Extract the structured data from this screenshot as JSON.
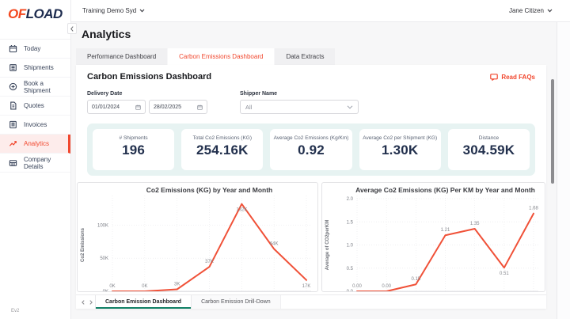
{
  "brand": {
    "logo_primary": "OF",
    "logo_secondary": "LOAD"
  },
  "topbar": {
    "org_selector": "Training Demo Syd",
    "user_menu": "Jane Citizen"
  },
  "sidebar": {
    "items": [
      {
        "label": "Today"
      },
      {
        "label": "Shipments"
      },
      {
        "label": "Book a Shipment"
      },
      {
        "label": "Quotes"
      },
      {
        "label": "Invoices"
      },
      {
        "label": "Analytics"
      },
      {
        "label": "Company Details"
      }
    ],
    "version": "Ev2"
  },
  "page": {
    "title": "Analytics"
  },
  "tabs": [
    {
      "label": "Performance Dashboard"
    },
    {
      "label": "Carbon Emissions Dashboard"
    },
    {
      "label": "Data Extracts"
    }
  ],
  "panel": {
    "title": "Carbon Emissions Dashboard",
    "read_faqs_label": "Read FAQs"
  },
  "filters": {
    "delivery_date_label": "Delivery Date",
    "date_from": "01/01/2024",
    "date_to": "28/02/2025",
    "shipper_label": "Shipper Name",
    "shipper_value": "All"
  },
  "kpis": [
    {
      "label": "# Shipments",
      "value": "196"
    },
    {
      "label": "Total Co2 Emissions (KG)",
      "value": "254.16K"
    },
    {
      "label": "Average Co2 Emissions (Kg/Km)",
      "value": "0.92"
    },
    {
      "label": "Average Co2 per Shipment (KG)",
      "value": "1.30K"
    },
    {
      "label": "Distance",
      "value": "304.59K"
    }
  ],
  "chart_data": [
    {
      "type": "line",
      "title": "Co2 Emissions (KG) by Year and Month",
      "ylabel": "Co2 Emissions",
      "values": [
        0,
        0,
        3,
        37,
        132,
        64,
        17
      ],
      "unit": "K (thousand KG)",
      "point_labels": [
        "0K",
        "0K",
        "3K",
        "37K",
        "132K",
        "64K",
        "17K"
      ],
      "label_positions": [
        "above",
        "above",
        "above",
        "above",
        "below",
        "above",
        "below"
      ],
      "yticks": [
        {
          "value": 0,
          "label": "0K"
        },
        {
          "value": 50,
          "label": "50K"
        },
        {
          "value": 100,
          "label": "100K"
        }
      ],
      "ylim": [
        0,
        140
      ],
      "grid": "dotted",
      "line_color": "#f05138"
    },
    {
      "type": "line",
      "title": "Average Co2 Emissions (KG) Per KM by Year and Month",
      "ylabel": "Average of CO2perKM",
      "values": [
        0.0,
        0.0,
        0.15,
        1.21,
        1.35,
        0.51,
        1.68
      ],
      "point_labels": [
        "0.00",
        "0.00",
        "0.15",
        "1.21",
        "1.35",
        "0.51",
        "1.68"
      ],
      "label_positions": [
        "above",
        "above",
        "above",
        "above",
        "above",
        "below",
        "above"
      ],
      "yticks": [
        {
          "value": 0,
          "label": "0.0"
        },
        {
          "value": 0.5,
          "label": "0.5"
        },
        {
          "value": 1,
          "label": "1.0"
        },
        {
          "value": 1.5,
          "label": "1.5"
        },
        {
          "value": 2,
          "label": "2.0"
        }
      ],
      "ylim": [
        0,
        2
      ],
      "grid": "dotted",
      "line_color": "#f05138"
    }
  ],
  "embed_tabs": [
    {
      "label": "Carbon Emission Dashboard"
    },
    {
      "label": "Carbon Emission Drill-Down"
    }
  ],
  "colors": {
    "accent": "#f1482f",
    "active_item_bg": "#fdeceb",
    "kpi_band_bg": "#e7f3f2",
    "chart_line": "#f05138",
    "embed_tab_underline": "#118066",
    "kpi_value_text": "#22304d"
  }
}
